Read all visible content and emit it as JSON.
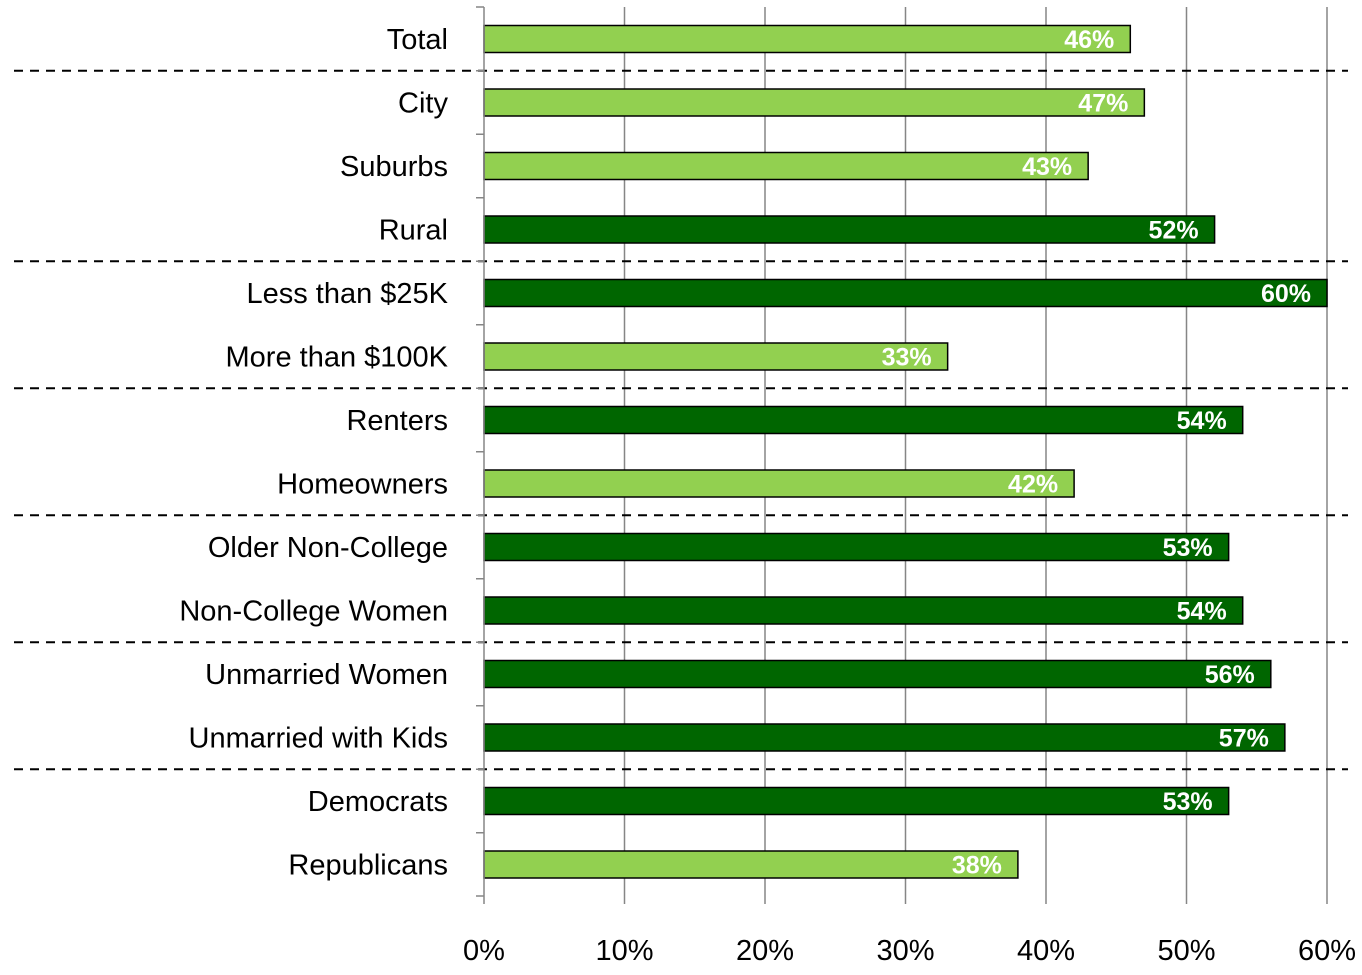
{
  "chart_data": {
    "type": "bar",
    "orientation": "horizontal",
    "categories": [
      "Total",
      "City",
      "Suburbs",
      "Rural",
      "Less than $25K",
      "More than $100K",
      "Renters",
      "Homeowners",
      "Older Non-College",
      "Non-College Women",
      "Unmarried Women",
      "Unmarried with Kids",
      "Democrats",
      "Republicans"
    ],
    "values": [
      46,
      47,
      43,
      52,
      60,
      33,
      54,
      42,
      53,
      54,
      56,
      57,
      53,
      38
    ],
    "value_labels": [
      "46%",
      "47%",
      "43%",
      "52%",
      "60%",
      "33%",
      "54%",
      "42%",
      "53%",
      "54%",
      "56%",
      "57%",
      "53%",
      "38%"
    ],
    "bar_shade": [
      "light",
      "light",
      "light",
      "dark",
      "dark",
      "light",
      "dark",
      "light",
      "dark",
      "dark",
      "dark",
      "dark",
      "dark",
      "light"
    ],
    "group_dividers_after": [
      "Total",
      "Rural",
      "More than $100K",
      "Homeowners",
      "Non-College Women",
      "Unmarried with Kids"
    ],
    "xlim": [
      0,
      60
    ],
    "x_ticks": [
      0,
      10,
      20,
      30,
      40,
      50,
      60
    ],
    "x_tick_labels": [
      "0%",
      "10%",
      "20%",
      "30%",
      "40%",
      "50%",
      "60%"
    ],
    "vertical_grid": true,
    "legend": "none",
    "title": "",
    "xlabel": "",
    "ylabel": ""
  },
  "colors": {
    "light_bar": "#92d050",
    "dark_bar": "#006600",
    "bar_outline": "#000000",
    "label_text": "#ffffff",
    "grid": "#868686",
    "axis": "#868686",
    "divider": "#000000",
    "category_text": "#000000"
  }
}
